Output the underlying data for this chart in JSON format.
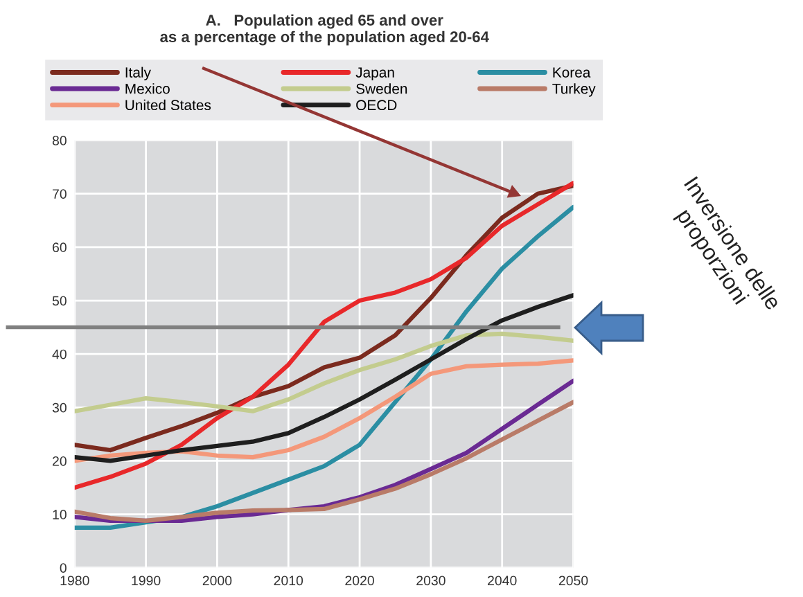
{
  "chart_data": {
    "type": "line",
    "title": "A.   Population aged 65 and over\nas a percentage of the population aged 20-64",
    "x": [
      1980,
      1985,
      1990,
      1995,
      2000,
      2005,
      2010,
      2015,
      2020,
      2025,
      2030,
      2035,
      2040,
      2045,
      2050
    ],
    "series": [
      {
        "name": "Italy",
        "color": "#7b2a1e",
        "values": [
          23,
          22,
          24.3,
          26.5,
          29,
          32,
          34,
          37.5,
          39.3,
          43.5,
          50.5,
          58.5,
          65.5,
          70,
          71.5
        ]
      },
      {
        "name": "Japan",
        "color": "#e8282a",
        "values": [
          15,
          17,
          19.5,
          23,
          28,
          32,
          38,
          46,
          50,
          51.5,
          54,
          58,
          64,
          68,
          72
        ]
      },
      {
        "name": "Korea",
        "color": "#2b8ea3",
        "values": [
          7.5,
          7.5,
          8.5,
          9.5,
          11.5,
          14,
          16.5,
          19,
          23,
          31,
          39,
          48,
          56,
          62,
          67.5
        ]
      },
      {
        "name": "Mexico",
        "color": "#6a2a93",
        "values": [
          9.5,
          8.8,
          8.8,
          8.8,
          9.5,
          10,
          10.8,
          11.5,
          13.2,
          15.5,
          18.5,
          21.5,
          26,
          30.5,
          35
        ]
      },
      {
        "name": "Sweden",
        "color": "#c3cc8e",
        "values": [
          29.3,
          30.5,
          31.7,
          31,
          30.2,
          29.3,
          31.5,
          34.5,
          37,
          39,
          41.5,
          43.5,
          43.8,
          43.2,
          42.5
        ]
      },
      {
        "name": "Turkey",
        "color": "#b97b68",
        "values": [
          10.5,
          9.3,
          8.8,
          9.5,
          10.3,
          10.7,
          10.8,
          11,
          12.8,
          14.8,
          17.5,
          20.5,
          24,
          27.5,
          31
        ]
      },
      {
        "name": "United States",
        "color": "#f4987a",
        "values": [
          20,
          21,
          21.5,
          21.8,
          21,
          20.7,
          22,
          24.5,
          28,
          32,
          36.3,
          37.7,
          38,
          38.2,
          38.8
        ]
      },
      {
        "name": "OECD",
        "color": "#1e1e1e",
        "values": [
          20.7,
          20,
          21,
          22,
          22.8,
          23.6,
          25.2,
          28.2,
          31.5,
          35.2,
          39,
          42.8,
          46.3,
          48.8,
          51
        ]
      }
    ],
    "xlim": [
      1980,
      2050
    ],
    "xticks": [
      1980,
      1990,
      2000,
      2010,
      2020,
      2030,
      2040,
      2050
    ],
    "ylim": [
      0,
      80
    ],
    "yticks": [
      0,
      10,
      20,
      30,
      40,
      50,
      60,
      70,
      80
    ],
    "grid": true,
    "legend": "top",
    "marker": "none",
    "line_style": "solid",
    "ref_lines": [
      {
        "axis": "y",
        "value": 45,
        "color": "#808080"
      }
    ],
    "annotations": [
      "Inversione delle\nproporzioni"
    ]
  }
}
